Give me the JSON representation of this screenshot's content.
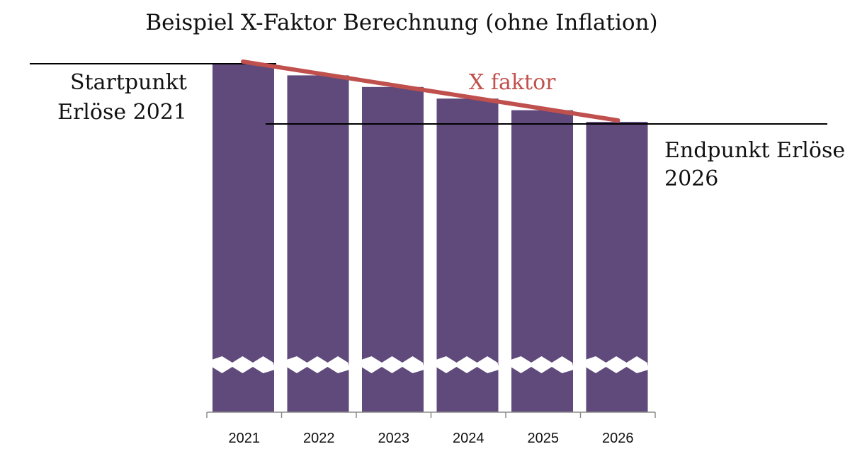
{
  "chart_data": {
    "type": "bar",
    "title": "Beispiel X-Faktor Berechnung (ohne Inflation)",
    "categories": [
      "2021",
      "2022",
      "2023",
      "2024",
      "2025",
      "2026"
    ],
    "values": [
      100,
      96.8,
      93.6,
      90.4,
      87.2,
      84
    ],
    "axis_break": true,
    "colors": {
      "bar": "#5f4a7b",
      "trend": "#c0504d",
      "line": "#000000"
    },
    "annotations": {
      "start_line1": "Startpunkt",
      "start_line2": "Erlöse 2021",
      "end_line1": "Endpunkt Erlöse",
      "end_line2": "2026",
      "trend_label": "X faktor"
    }
  }
}
